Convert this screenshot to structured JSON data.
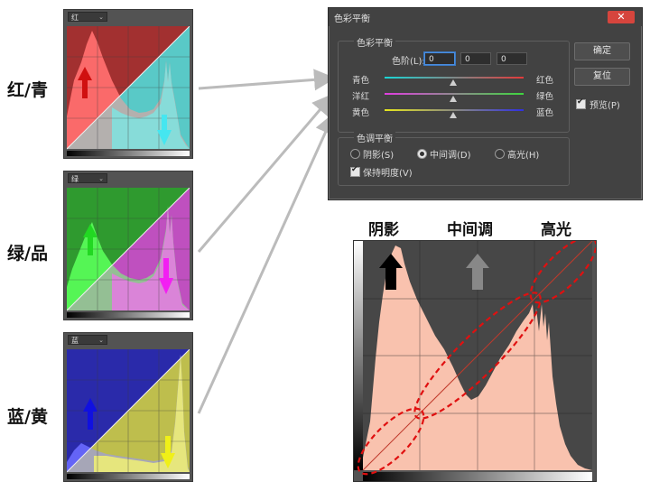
{
  "row_labels": {
    "red_cyan": "红/青",
    "green_magenta": "绿/品",
    "blue_yellow": "蓝/黄"
  },
  "curves": [
    {
      "channel_label": "红",
      "top_color": "#a23030",
      "bottom_color": "#7fe3e0",
      "hist_color": "#ff6a6a",
      "hist_color2": "#5fd1cf",
      "arrow_up_color": "#d01010",
      "arrow_down_color": "#45e6f0"
    },
    {
      "channel_label": "绿",
      "top_color": "#2f9a2f",
      "bottom_color": "#e27ee0",
      "hist_color": "#5aff5a",
      "hist_color2": "#d050d0",
      "arrow_up_color": "#22d822",
      "arrow_down_color": "#f21ff2"
    },
    {
      "channel_label": "蓝",
      "top_color": "#2a2aaa",
      "bottom_color": "#e9e97a",
      "hist_color": "#6a6aff",
      "hist_color2": "#c8c83a",
      "arrow_up_color": "#1010e0",
      "arrow_down_color": "#f0f018"
    }
  ],
  "dialog": {
    "title": "色彩平衡",
    "close_glyph": "✕",
    "balance_group": "色彩平衡",
    "levels_label": "色阶(L):",
    "levels_values": [
      "0",
      "0",
      "0"
    ],
    "sliders": [
      {
        "left": "青色",
        "right": "红色"
      },
      {
        "left": "洋红",
        "right": "绿色"
      },
      {
        "left": "黄色",
        "right": "蓝色"
      }
    ],
    "tone_group": "色调平衡",
    "tones": [
      "阴影(S)",
      "中间调(D)",
      "高光(H)"
    ],
    "selected_tone": "中间调(D)",
    "preserve_luminosity": "保持明度(V)",
    "ok_label": "确定",
    "reset_label": "复位",
    "preview_label": "预览(P)"
  },
  "histogram_headers": {
    "shadows": "阴影",
    "midtones": "中间调",
    "highlights": "高光"
  },
  "colors": {
    "arrow_gray": "#cccccc",
    "hist_fill": "#f9c2ae",
    "ellipse": "#e01010"
  }
}
